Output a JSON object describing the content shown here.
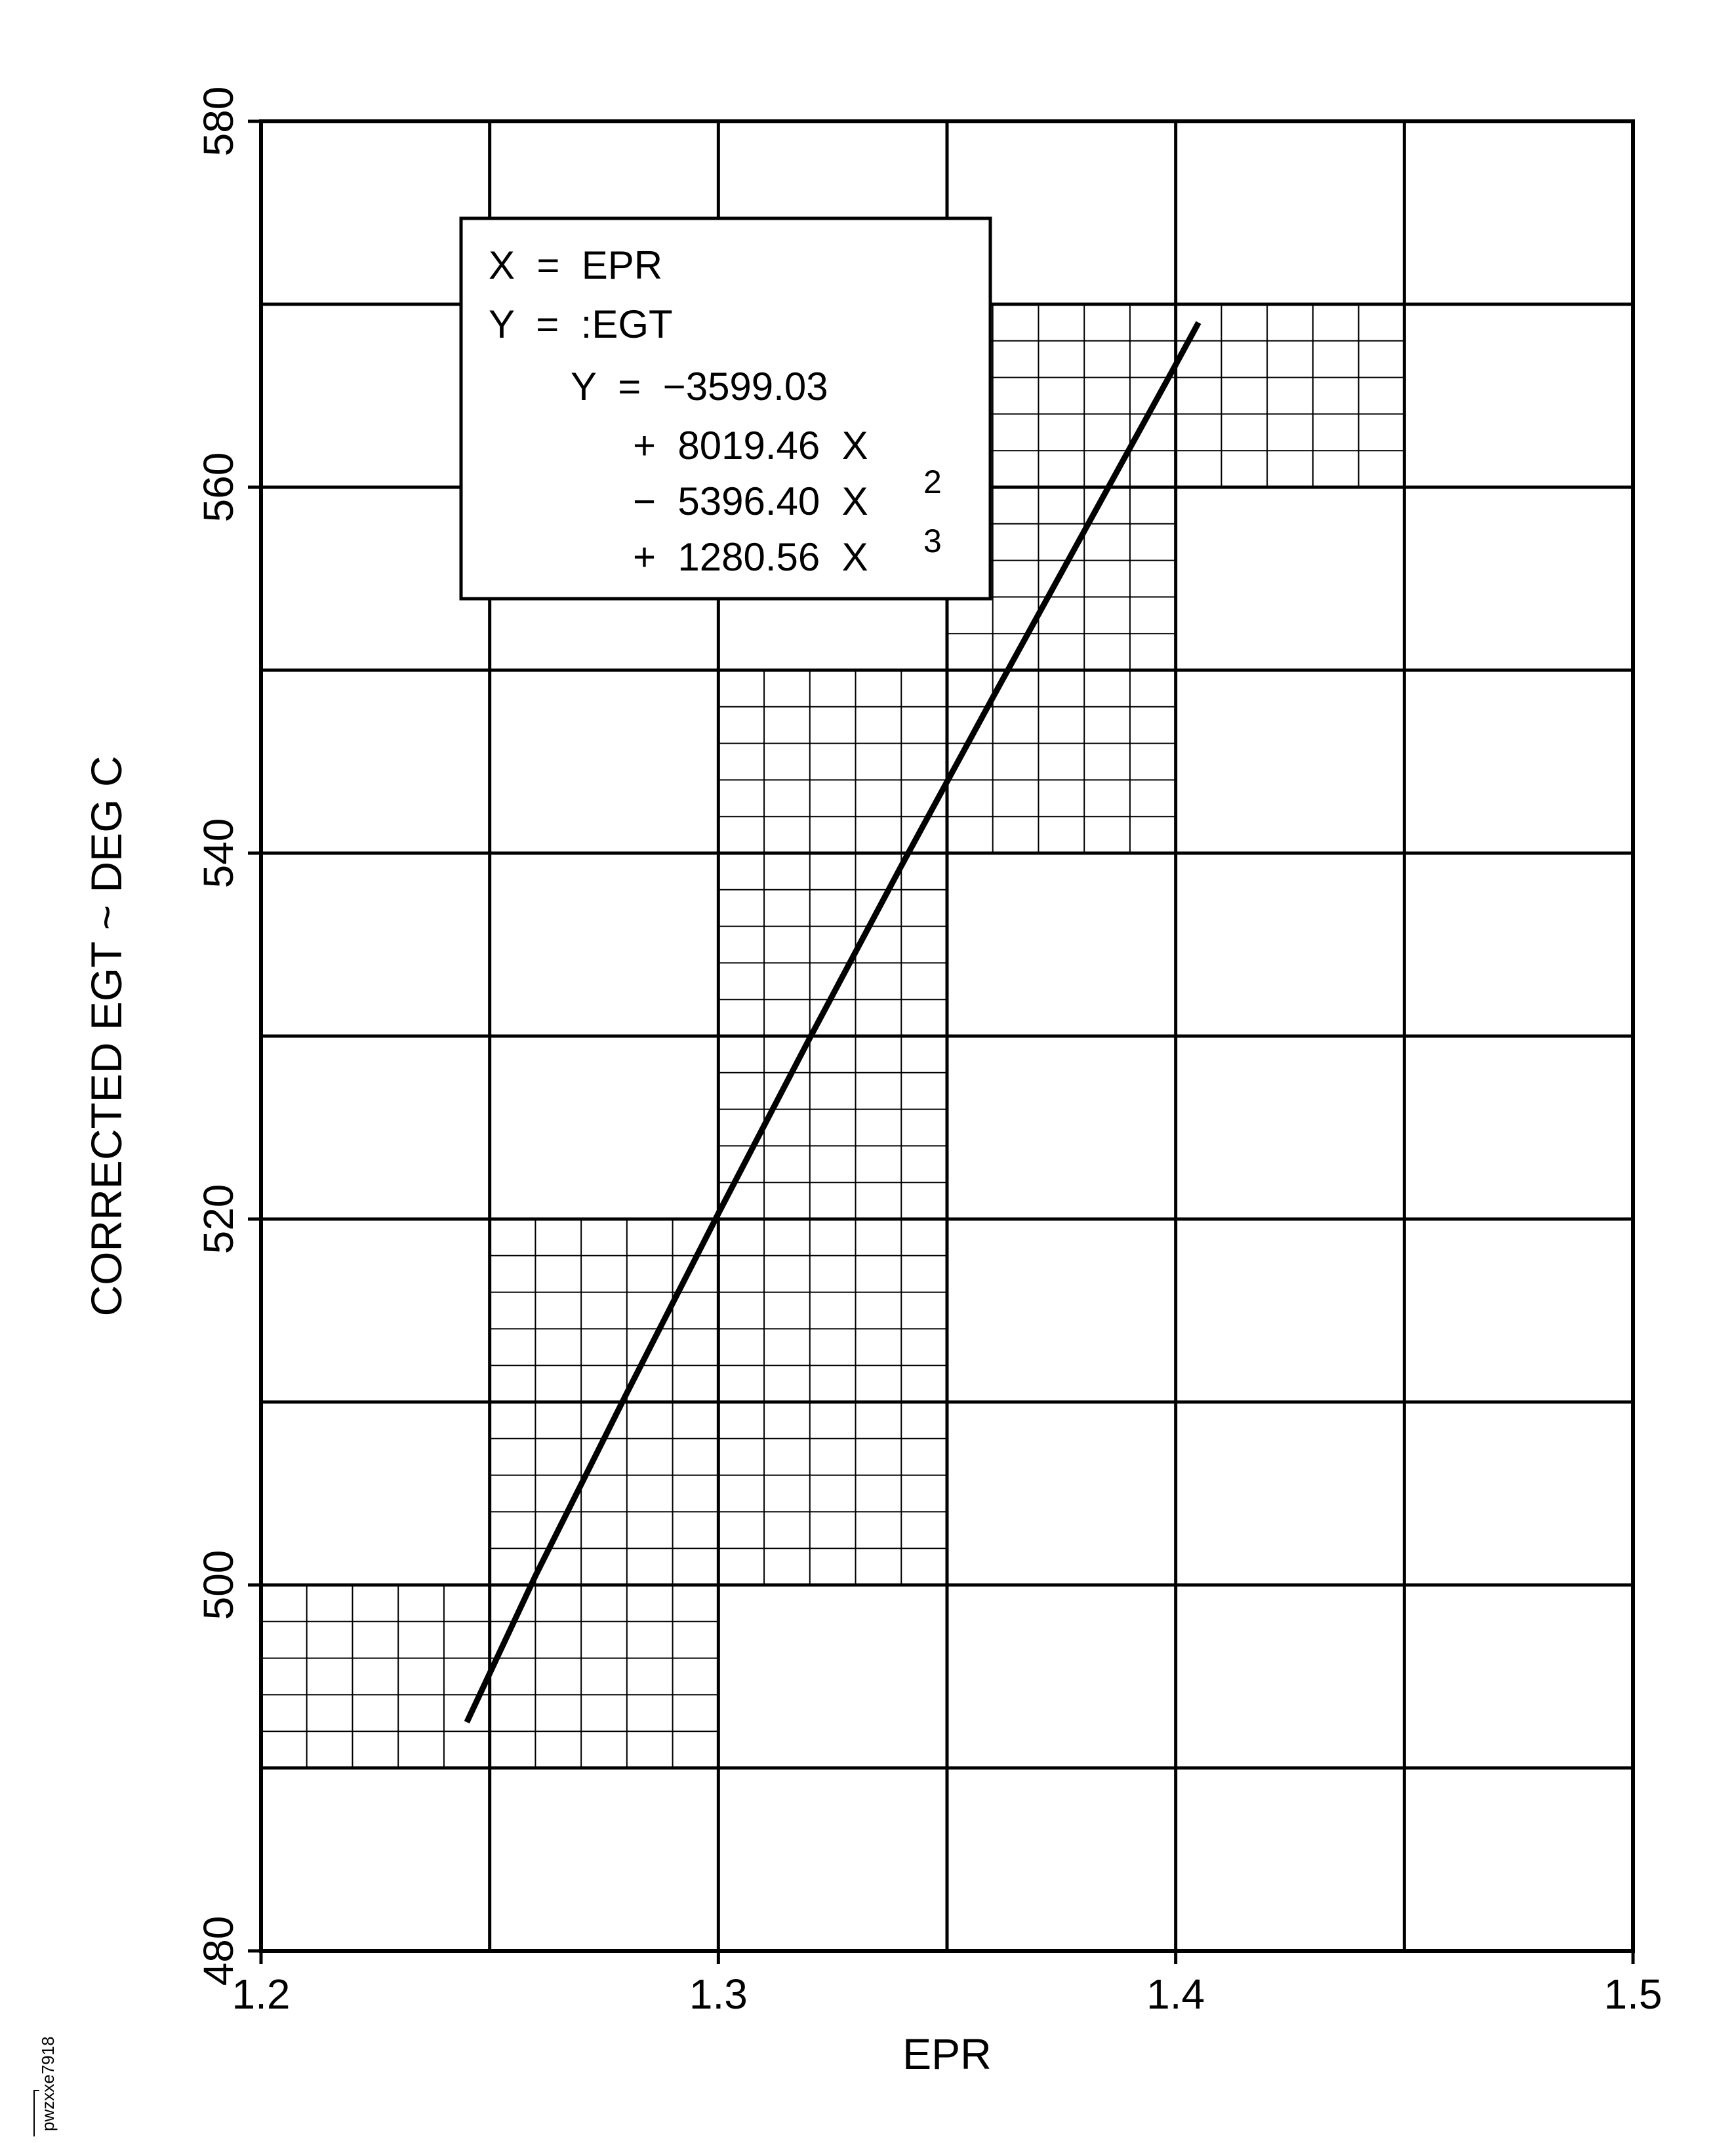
{
  "figure_id": "pwzxxe7918",
  "chart_data": {
    "type": "line",
    "title": "",
    "xlabel": "EPR",
    "ylabel": "CORRECTED EGT ~ DEG C",
    "xlim": [
      1.2,
      1.5
    ],
    "ylim": [
      480,
      580
    ],
    "x_ticks": [
      "1.2",
      "1.3",
      "1.4",
      "1.5"
    ],
    "y_ticks": [
      "480",
      "500",
      "520",
      "540",
      "560",
      "580"
    ],
    "grid": true,
    "legend": "none",
    "series": [
      {
        "x": [
          1.245,
          1.26,
          1.28,
          1.3,
          1.32,
          1.34,
          1.36,
          1.38,
          1.4,
          1.405
        ],
        "y": [
          492.5,
          500.5,
          510.5,
          520.3,
          529.9,
          539.3,
          548.5,
          557.6,
          566.7,
          569.0
        ]
      }
    ],
    "tolerance_bands": [
      {
        "x": [
          1.2,
          1.3
        ],
        "y": [
          490,
          500
        ]
      },
      {
        "x": [
          1.25,
          1.3
        ],
        "y": [
          500,
          520
        ]
      },
      {
        "x": [
          1.3,
          1.35
        ],
        "y": [
          500,
          550
        ]
      },
      {
        "x": [
          1.35,
          1.4
        ],
        "y": [
          540,
          570
        ]
      },
      {
        "x": [
          1.4,
          1.45
        ],
        "y": [
          560,
          570
        ]
      }
    ],
    "equation_box": {
      "line1": "X  =  EPR",
      "line2": "Y  =  :EGT",
      "line3": "Y  =  −3599.03",
      "line4": "+  8019.46  X",
      "line5": "−  5396.40  X",
      "line5_sup": "2",
      "line6": "+  1280.56  X",
      "line6_sup": "3"
    }
  }
}
